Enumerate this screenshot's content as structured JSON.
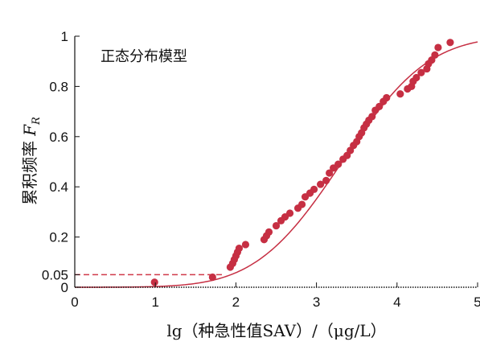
{
  "chart_data": {
    "type": "scatter",
    "title": "",
    "annotation": "正态分布模型",
    "xlabel": "lg（种急性值SAV）/（μg/L）",
    "ylabel_text": "累积频率",
    "ylabel_symbol": "F",
    "ylabel_subscript": "R",
    "xlim": [
      0,
      5
    ],
    "ylim": [
      0,
      1
    ],
    "x_ticks": [
      0,
      1,
      2,
      3,
      4,
      5
    ],
    "x_tick_labels": [
      "0",
      "1",
      "2",
      "3",
      "4",
      "5"
    ],
    "y_ticks": [
      0,
      0.05,
      0.2,
      0.4,
      0.6,
      0.8,
      1
    ],
    "y_tick_labels": [
      "0",
      "0.05",
      "0.2",
      "0.4",
      "0.6",
      "0.8",
      "1"
    ],
    "reference_line": {
      "y": 0.05,
      "x_end": 1.84,
      "style": "dashed"
    },
    "baseline": {
      "y": 0,
      "style": "dotted"
    },
    "grid": false,
    "colors": {
      "points": "#c62f43",
      "fit_line": "#c62f43",
      "reference_line": "#d03a4a",
      "axis": "#111111"
    },
    "series": [
      {
        "kind": "points",
        "x": [
          0.99,
          1.71,
          1.93,
          1.96,
          1.98,
          2.0,
          2.02,
          2.04,
          2.12,
          2.35,
          2.38,
          2.41,
          2.5,
          2.56,
          2.61,
          2.67,
          2.77,
          2.82,
          2.86,
          2.92,
          2.97,
          3.05,
          3.12,
          3.16,
          3.21,
          3.27,
          3.33,
          3.38,
          3.42,
          3.46,
          3.5,
          3.53,
          3.56,
          3.59,
          3.62,
          3.65,
          3.69,
          3.73,
          3.78,
          3.83,
          3.87,
          4.04,
          4.13,
          4.18,
          4.2,
          4.24,
          4.3,
          4.37,
          4.39,
          4.43,
          4.47,
          4.51,
          4.66
        ],
        "y": [
          0.02,
          0.04,
          0.08,
          0.095,
          0.11,
          0.125,
          0.14,
          0.155,
          0.17,
          0.19,
          0.205,
          0.22,
          0.245,
          0.265,
          0.28,
          0.295,
          0.315,
          0.33,
          0.36,
          0.375,
          0.39,
          0.41,
          0.425,
          0.455,
          0.475,
          0.49,
          0.51,
          0.525,
          0.545,
          0.565,
          0.58,
          0.6,
          0.615,
          0.635,
          0.65,
          0.665,
          0.68,
          0.705,
          0.72,
          0.74,
          0.755,
          0.77,
          0.79,
          0.8,
          0.82,
          0.835,
          0.855,
          0.87,
          0.89,
          0.905,
          0.925,
          0.955,
          0.975
        ]
      },
      {
        "kind": "fit",
        "model": "normal_cdf",
        "mean": 3.32,
        "sd": 0.84
      }
    ]
  }
}
